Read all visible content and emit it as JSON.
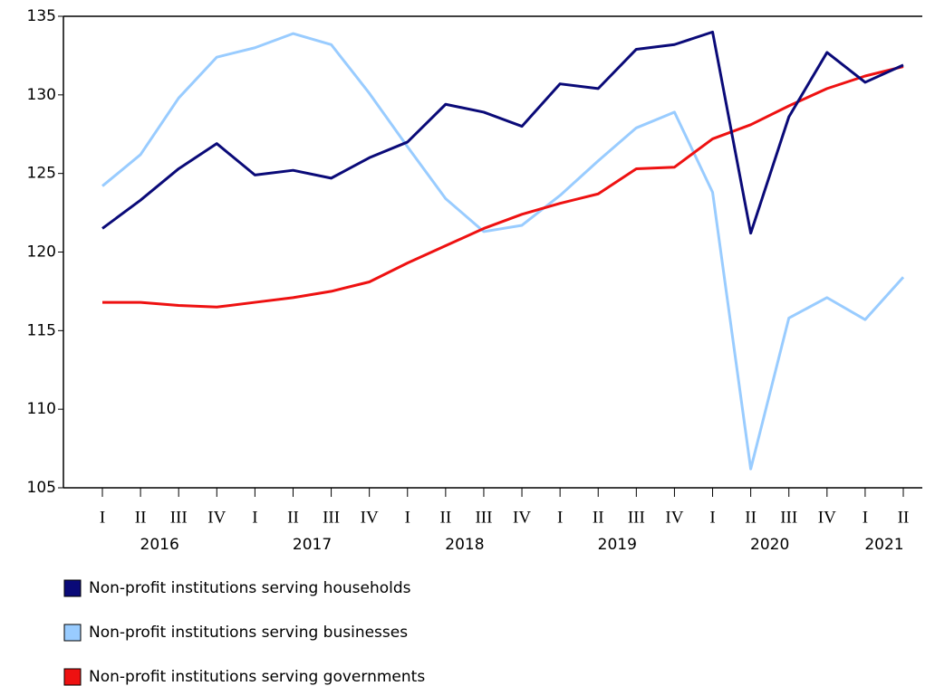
{
  "chart_data": {
    "type": "line",
    "categories": [
      "I",
      "II",
      "III",
      "IV",
      "I",
      "II",
      "III",
      "IV",
      "I",
      "II",
      "III",
      "IV",
      "I",
      "II",
      "III",
      "IV",
      "I",
      "II",
      "III",
      "IV",
      "I",
      "II"
    ],
    "year_labels": [
      "2016",
      "2017",
      "2018",
      "2019",
      "2020",
      "2021"
    ],
    "series": [
      {
        "name": "Non-profit institutions serving households",
        "color": "#0a0a78",
        "values": [
          121.5,
          123.3,
          125.3,
          126.9,
          124.9,
          125.2,
          124.7,
          126.0,
          127.0,
          129.4,
          128.9,
          128.0,
          130.7,
          130.4,
          132.9,
          133.2,
          134.0,
          121.2,
          128.6,
          132.7,
          130.8,
          131.9
        ]
      },
      {
        "name": "Non-profit institutions serving businesses",
        "color": "#99ccff",
        "values": [
          124.2,
          126.2,
          129.8,
          132.4,
          133.0,
          133.9,
          133.2,
          130.1,
          126.7,
          123.4,
          121.3,
          121.7,
          123.6,
          125.8,
          127.9,
          128.9,
          123.8,
          106.2,
          115.8,
          117.1,
          115.7,
          118.4
        ]
      },
      {
        "name": "Non-profit institutions serving governments",
        "color": "#ee1111",
        "values": [
          116.8,
          116.8,
          116.6,
          116.5,
          116.8,
          117.1,
          117.5,
          118.1,
          119.3,
          120.4,
          121.5,
          122.4,
          123.1,
          123.7,
          125.3,
          125.4,
          127.2,
          128.1,
          129.3,
          130.4,
          131.2,
          131.8
        ]
      }
    ],
    "ylim": [
      105,
      135
    ],
    "yticks": [
      105,
      110,
      115,
      120,
      125,
      130,
      135
    ],
    "legend": "bottom-left"
  }
}
